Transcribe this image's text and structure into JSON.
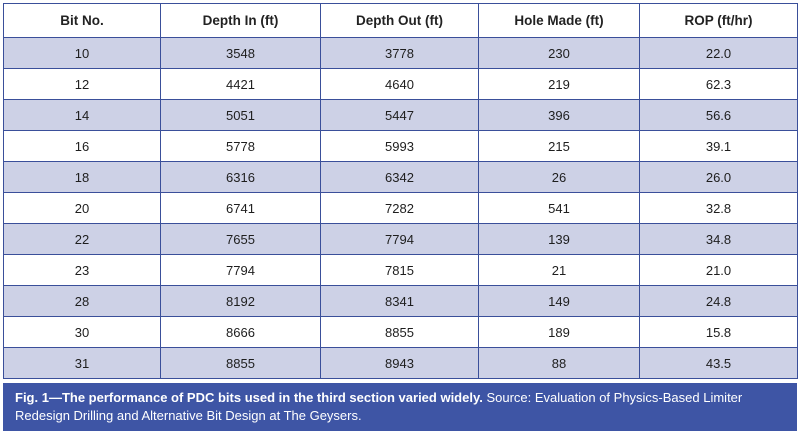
{
  "table": {
    "headers": [
      "Bit No.",
      "Depth In (ft)",
      "Depth Out (ft)",
      "Hole Made (ft)",
      "ROP (ft/hr)"
    ],
    "rows": [
      [
        "10",
        "3548",
        "3778",
        "230",
        "22.0"
      ],
      [
        "12",
        "4421",
        "4640",
        "219",
        "62.3"
      ],
      [
        "14",
        "5051",
        "5447",
        "396",
        "56.6"
      ],
      [
        "16",
        "5778",
        "5993",
        "215",
        "39.1"
      ],
      [
        "18",
        "6316",
        "6342",
        "26",
        "26.0"
      ],
      [
        "20",
        "6741",
        "7282",
        "541",
        "32.8"
      ],
      [
        "22",
        "7655",
        "7794",
        "139",
        "34.8"
      ],
      [
        "23",
        "7794",
        "7815",
        "21",
        "21.0"
      ],
      [
        "28",
        "8192",
        "8341",
        "149",
        "24.8"
      ],
      [
        "30",
        "8666",
        "8855",
        "189",
        "15.8"
      ],
      [
        "31",
        "8855",
        "8943",
        "88",
        "43.5"
      ]
    ]
  },
  "caption": {
    "bold": "Fig. 1—The performance of PDC bits used in the third section varied widely.",
    "text": " Source: Evaluation of Physics-Based Limiter Redesign Drilling and Alternative Bit Design at The Geysers."
  },
  "colors": {
    "header_bg": "#ffffff",
    "row_shaded": "#cdd1e6",
    "row_plain": "#ffffff",
    "border": "#3a4f9a",
    "caption_bg": "#3e55a5",
    "caption_text": "#ffffff"
  }
}
